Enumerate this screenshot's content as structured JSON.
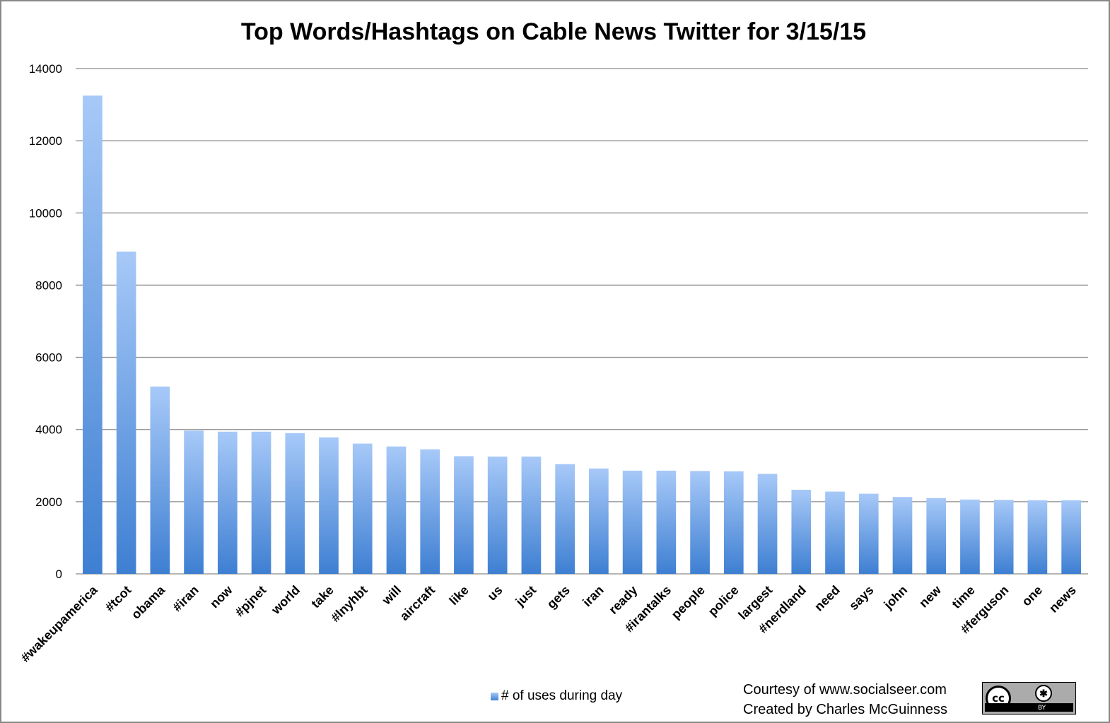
{
  "chart_data": {
    "type": "bar",
    "title": "Top Words/Hashtags on Cable News Twitter for 3/15/15",
    "xlabel": "",
    "ylabel": "",
    "ylim": [
      0,
      14000
    ],
    "yticks": [
      0,
      2000,
      4000,
      6000,
      8000,
      10000,
      12000,
      14000
    ],
    "grid": true,
    "legend_position": "bottom",
    "categories": [
      "#wakeupamerica",
      "#tcot",
      "obama",
      "#iran",
      "now",
      "#pjnet",
      "world",
      "take",
      "#lnyhbt",
      "will",
      "aircraft",
      "like",
      "us",
      "just",
      "gets",
      "iran",
      "ready",
      "#irantalks",
      "people",
      "police",
      "largest",
      "#nerdland",
      "need",
      "says",
      "john",
      "new",
      "time",
      "#ferguson",
      "one",
      "news"
    ],
    "series": [
      {
        "name": "# of uses during day",
        "values": [
          13250,
          8930,
          5190,
          3970,
          3940,
          3940,
          3900,
          3780,
          3610,
          3530,
          3450,
          3260,
          3250,
          3250,
          3040,
          2920,
          2860,
          2860,
          2850,
          2840,
          2770,
          2330,
          2280,
          2220,
          2130,
          2100,
          2060,
          2050,
          2040,
          2040
        ]
      }
    ],
    "colors": {
      "bar_top": "#a7c9f8",
      "bar_bottom": "#3e7fd2",
      "grid": "#8c8c8c"
    }
  },
  "footer": {
    "credit_line1": "Courtesy of www.socialseer.com",
    "credit_line2": "Created by Charles McGuinness",
    "license_badge": {
      "cc_text": "cc",
      "by_text": "BY",
      "icon": "person-icon"
    }
  }
}
